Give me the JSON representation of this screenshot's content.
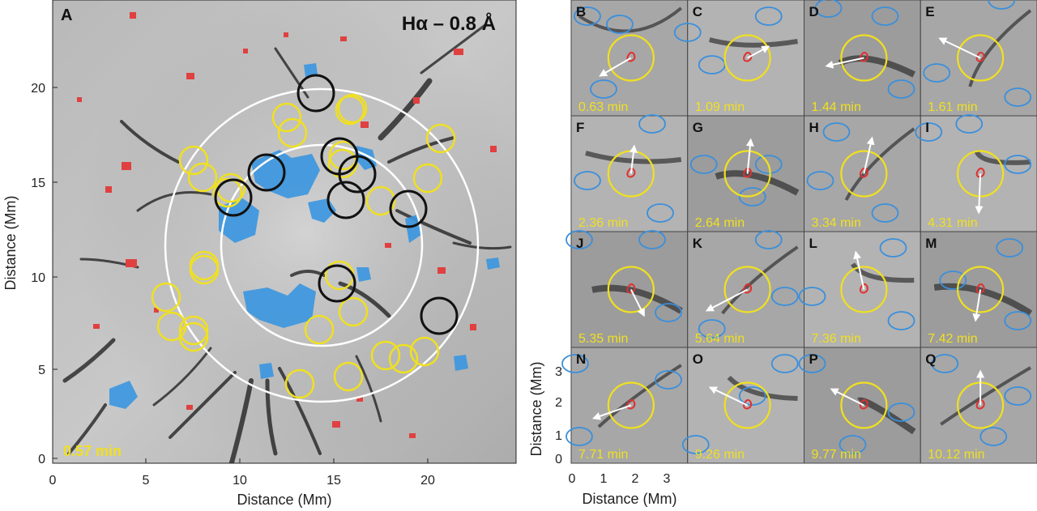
{
  "main_panel": {
    "letter": "A",
    "title": "Hα – 0.8 Å",
    "time": "0.57 min",
    "xlabel": "Distance (Mm)",
    "ylabel": "Distance (Mm)",
    "xticks": [
      "0",
      "5",
      "10",
      "15",
      "20"
    ],
    "yticks": [
      "0",
      "5",
      "10",
      "15",
      "20"
    ]
  },
  "inset_axes": {
    "xlabel": "Distance (Mm)",
    "ylabel": "Distance (Mm)",
    "xticks": [
      "0",
      "1",
      "2",
      "3"
    ],
    "yticks": [
      "0",
      "1",
      "2",
      "3"
    ]
  },
  "panels": [
    {
      "letter": "B",
      "time": "0.63 min"
    },
    {
      "letter": "C",
      "time": "1.09 min"
    },
    {
      "letter": "D",
      "time": "1.44 min"
    },
    {
      "letter": "E",
      "time": "1.61 min"
    },
    {
      "letter": "F",
      "time": "2.36 min"
    },
    {
      "letter": "G",
      "time": "2.64 min"
    },
    {
      "letter": "H",
      "time": "3.34 min"
    },
    {
      "letter": "I",
      "time": "4.31 min"
    },
    {
      "letter": "J",
      "time": "5.35 min"
    },
    {
      "letter": "K",
      "time": "5.64 min"
    },
    {
      "letter": "L",
      "time": "7.36 min"
    },
    {
      "letter": "M",
      "time": "7.42 min"
    },
    {
      "letter": "N",
      "time": "7.71 min"
    },
    {
      "letter": "O",
      "time": "9.26 min"
    },
    {
      "letter": "P",
      "time": "9.77 min"
    },
    {
      "letter": "Q",
      "time": "10.12 min"
    }
  ],
  "colors": {
    "positive_contour": "#e03030",
    "negative_contour": "#3a8fdc",
    "yellow_circle": "#f0e020",
    "black_circle": "#111111",
    "white_ring": "#ffffff",
    "arrow": "#ffffff"
  }
}
